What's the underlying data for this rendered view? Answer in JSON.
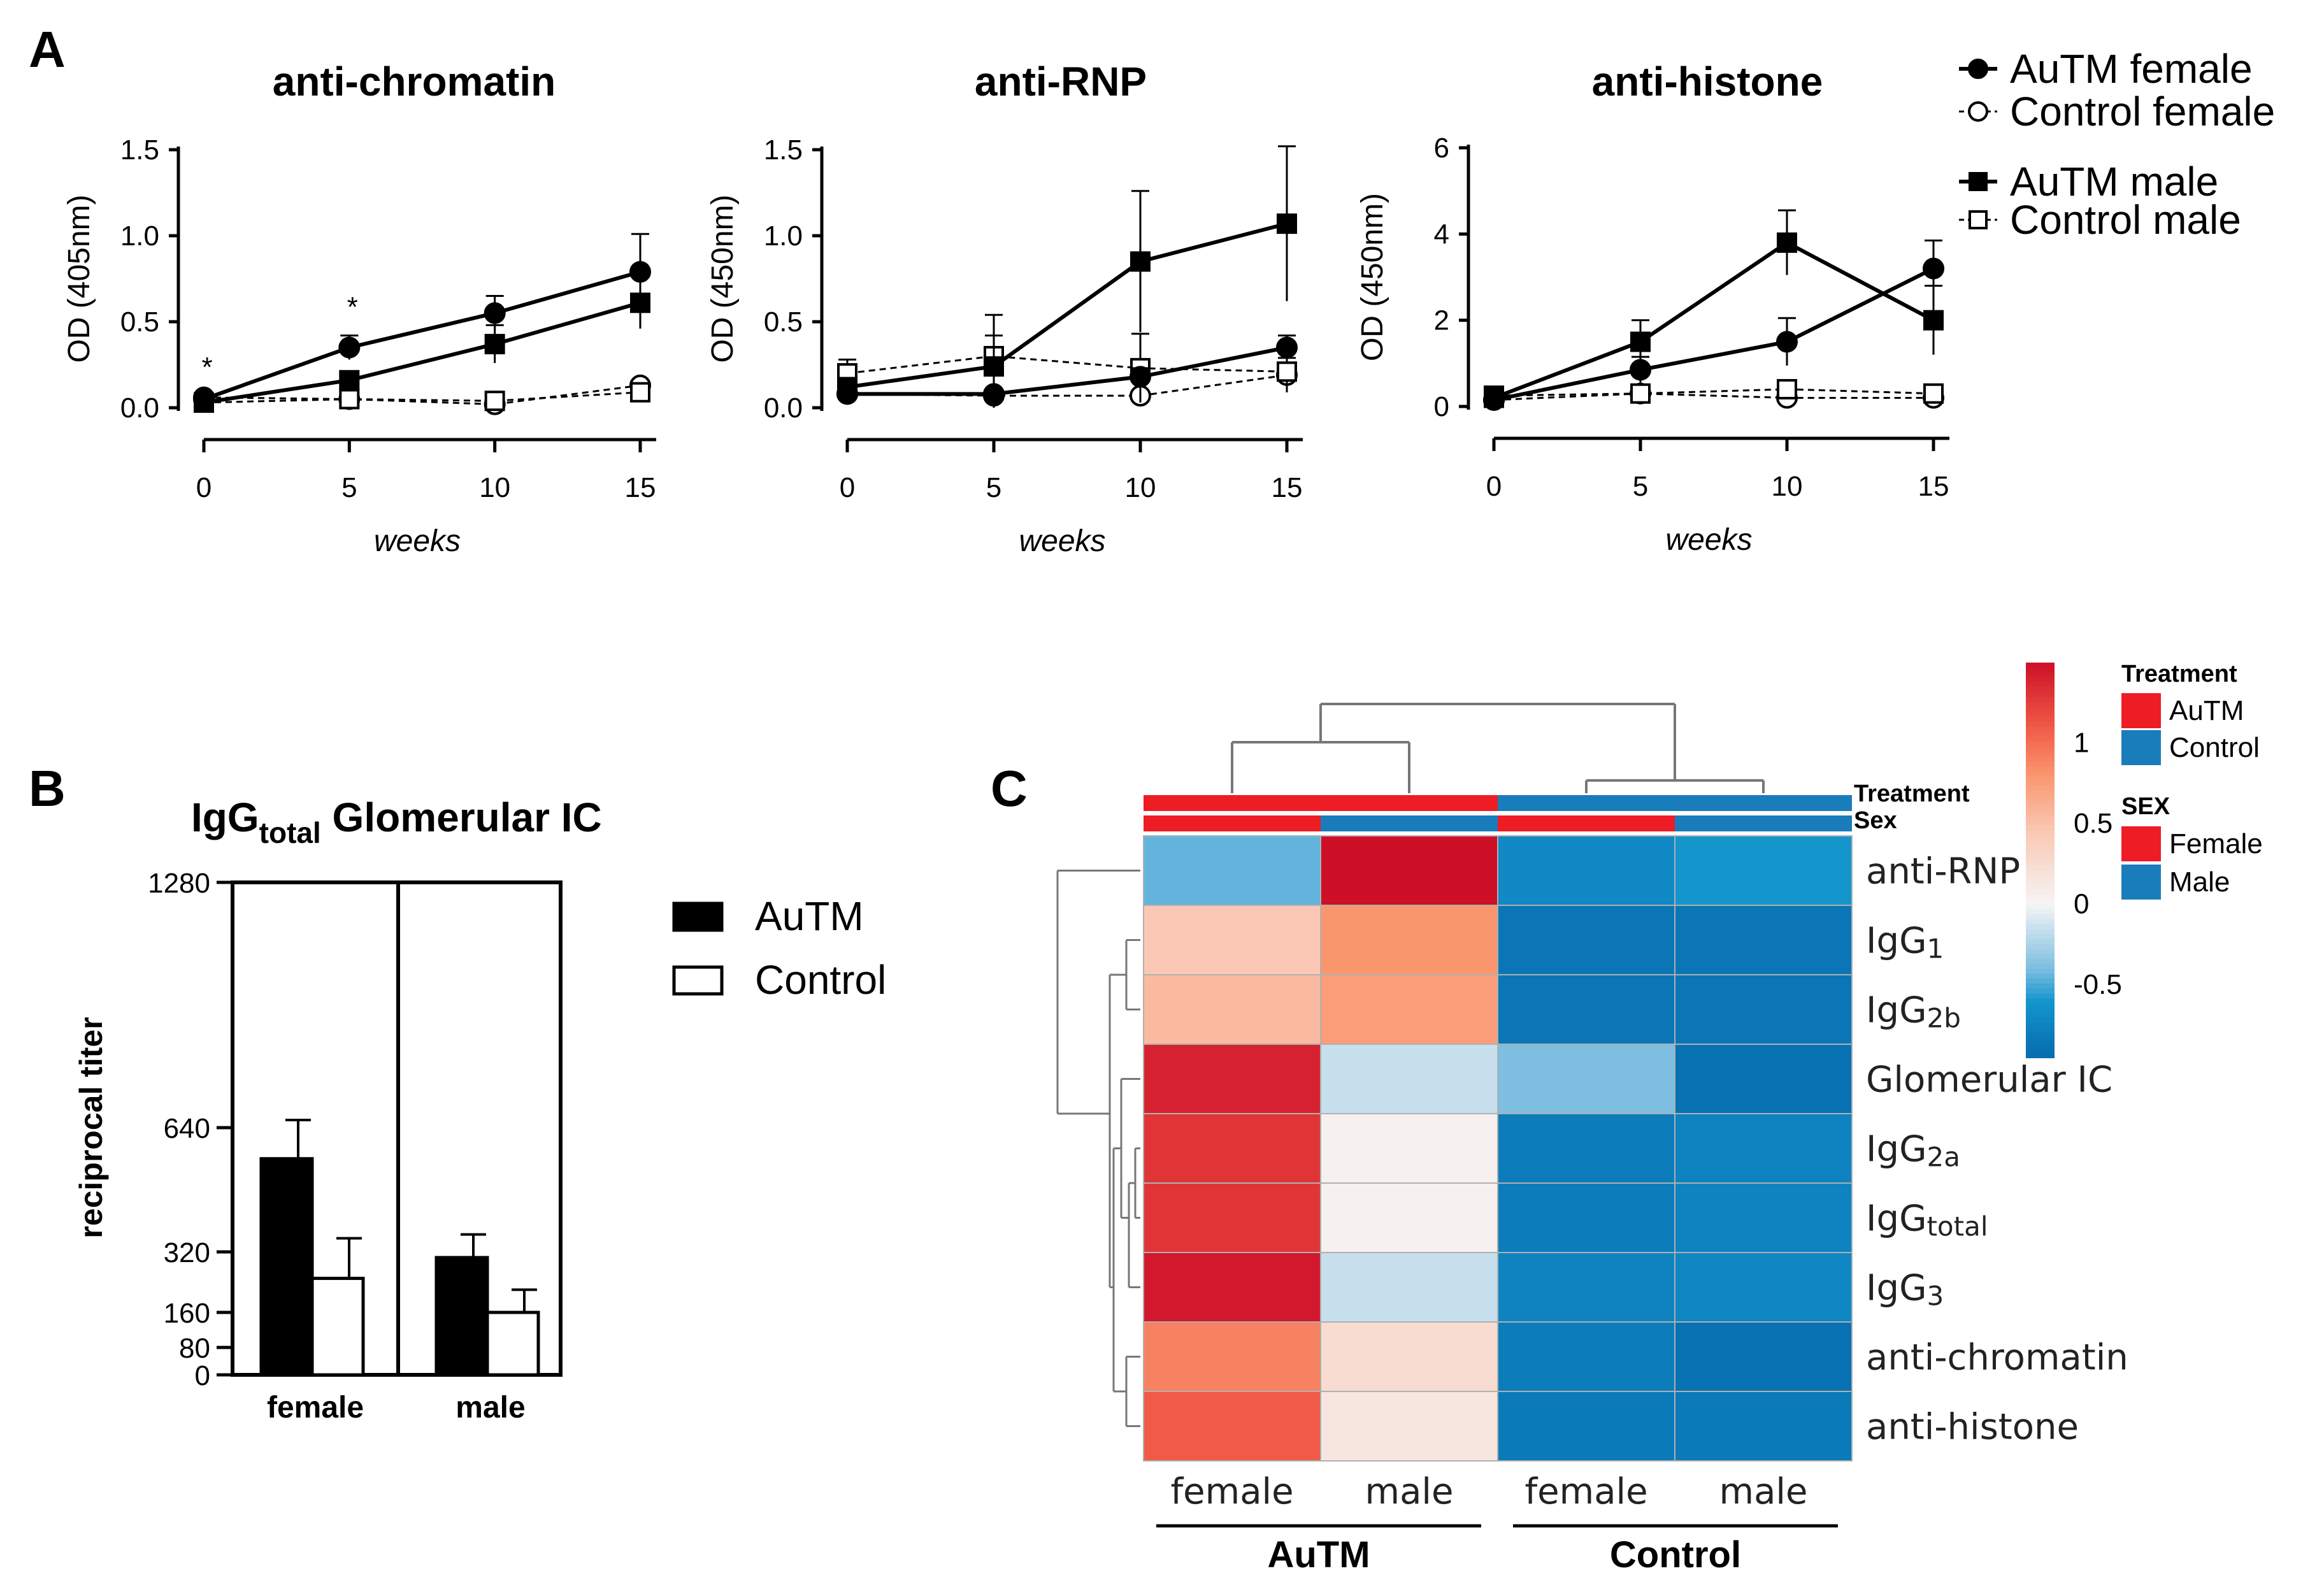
{
  "panels": {
    "A": "A",
    "B": "B",
    "C": "C"
  },
  "line_legend": [
    {
      "label": "AuTM female",
      "marker": "filled-circle-icon"
    },
    {
      "label": "Control female",
      "marker": "open-circle-icon"
    },
    {
      "label": "AuTM male",
      "marker": "filled-square-icon"
    },
    {
      "label": "Control male",
      "marker": "open-square-icon"
    }
  ],
  "bar_legend": [
    "AuTM",
    "Control"
  ],
  "heatmap_top_labels": {
    "treatment": "Treatment",
    "sex": "Sex"
  },
  "heatmap_side_legend": {
    "treatment_title": "Treatment",
    "treatment_items": [
      "AuTM",
      "Control"
    ],
    "sex_title": "SEX",
    "sex_items": [
      "Female",
      "Male"
    ]
  },
  "colors": {
    "red": "#ee1c25",
    "blue": "#1a7dbb"
  },
  "chart_data": [
    {
      "type": "line",
      "title": "anti-chromatin",
      "xlabel": "weeks",
      "ylabel": "OD (405nm)",
      "x": [
        0,
        5,
        10,
        15
      ],
      "xticks": [
        "0",
        "5",
        "10",
        "15"
      ],
      "ylim": [
        0,
        1.5
      ],
      "yticks": [
        "0.0",
        "0.5",
        "1.0",
        "1.5"
      ],
      "ytick_values": [
        0,
        0.5,
        1.0,
        1.5
      ],
      "series": [
        {
          "name": "AuTM female",
          "values": [
            0.05,
            0.35,
            0.55,
            0.79
          ],
          "err": [
            0.02,
            0.07,
            0.1,
            0.22
          ]
        },
        {
          "name": "AuTM male",
          "values": [
            0.03,
            0.16,
            0.37,
            0.61
          ],
          "err": [
            0.01,
            0.04,
            0.11,
            0.15
          ]
        },
        {
          "name": "Control female",
          "values": [
            0.06,
            0.05,
            0.02,
            0.13
          ],
          "err": [
            0.01,
            0.01,
            0.02,
            0.03
          ]
        },
        {
          "name": "Control male",
          "values": [
            0.03,
            0.05,
            0.04,
            0.09
          ],
          "err": [
            0.01,
            0.01,
            0.02,
            0.02
          ]
        }
      ],
      "annotations": [
        {
          "x": 0,
          "text": "*"
        },
        {
          "x": 5,
          "text": "*"
        }
      ]
    },
    {
      "type": "line",
      "title": "anti-RNP",
      "xlabel": "weeks",
      "ylabel": "OD (450nm)",
      "x": [
        0,
        5,
        10,
        15
      ],
      "xticks": [
        "0",
        "5",
        "10",
        "15"
      ],
      "ylim": [
        0,
        1.5
      ],
      "yticks": [
        "0.0",
        "0.5",
        "1.0",
        "1.5"
      ],
      "ytick_values": [
        0,
        0.5,
        1.0,
        1.5
      ],
      "series": [
        {
          "name": "AuTM female",
          "values": [
            0.08,
            0.08,
            0.18,
            0.35
          ],
          "err": [
            0.02,
            0.02,
            0.05,
            0.07
          ]
        },
        {
          "name": "AuTM male",
          "values": [
            0.12,
            0.24,
            0.85,
            1.07
          ],
          "err": [
            0.03,
            0.3,
            0.41,
            0.45
          ]
        },
        {
          "name": "Control female",
          "values": [
            0.08,
            0.07,
            0.07,
            0.19
          ],
          "err": [
            0.02,
            0.02,
            0.02,
            0.1
          ]
        },
        {
          "name": "Control male",
          "values": [
            0.2,
            0.3,
            0.23,
            0.21
          ],
          "err": [
            0.08,
            0.12,
            0.2,
            0.12
          ]
        }
      ],
      "annotations": []
    },
    {
      "type": "line",
      "title": "anti-histone",
      "xlabel": "weeks",
      "ylabel": "OD (450nm)",
      "x": [
        0,
        5,
        10,
        15
      ],
      "xticks": [
        "0",
        "5",
        "10",
        "15"
      ],
      "ylim": [
        0,
        6
      ],
      "yticks": [
        "0",
        "2",
        "4",
        "6"
      ],
      "ytick_values": [
        0,
        2,
        4,
        6
      ],
      "series": [
        {
          "name": "AuTM female",
          "values": [
            0.15,
            0.85,
            1.5,
            3.2
          ],
          "err": [
            0.05,
            0.3,
            0.55,
            0.65
          ]
        },
        {
          "name": "AuTM male",
          "values": [
            0.2,
            1.5,
            3.8,
            2.0
          ],
          "err": [
            0.08,
            0.5,
            0.75,
            0.8
          ]
        },
        {
          "name": "Control female",
          "values": [
            0.15,
            0.3,
            0.2,
            0.2
          ],
          "err": [
            0.03,
            0.05,
            0.05,
            0.05
          ]
        },
        {
          "name": "Control male",
          "values": [
            0.25,
            0.3,
            0.4,
            0.3
          ],
          "err": [
            0.05,
            0.05,
            0.08,
            0.06
          ]
        }
      ],
      "annotations": []
    },
    {
      "type": "bar",
      "title": "IgG",
      "title_sub": "total",
      "title_rest": " Glomerular IC",
      "ylabel": "reciprocal titer",
      "categories": [
        "female",
        "male"
      ],
      "ylim": [
        0,
        1280
      ],
      "yticks": [
        "0",
        "80",
        "160",
        "320",
        "640",
        "1280"
      ],
      "ytick_values": [
        0,
        80,
        160,
        320,
        640,
        1280
      ],
      "series": [
        {
          "name": "AuTM",
          "values": [
            560,
            305
          ],
          "err": [
            100,
            60
          ]
        },
        {
          "name": "Control",
          "values": [
            250,
            160
          ],
          "err": [
            105,
            60
          ]
        }
      ]
    },
    {
      "type": "heatmap",
      "rows": [
        {
          "label": "anti-RNP",
          "base": "anti-RNP",
          "sub": ""
        },
        {
          "label": "IgG1",
          "base": "IgG",
          "sub": "1"
        },
        {
          "label": "IgG2b",
          "base": "IgG",
          "sub": "2b"
        },
        {
          "label": "Glomerular IC",
          "base": "Glomerular IC",
          "sub": ""
        },
        {
          "label": "IgG2a",
          "base": "IgG",
          "sub": "2a"
        },
        {
          "label": "IgGtotal",
          "base": "IgG",
          "sub": "total"
        },
        {
          "label": "IgG3",
          "base": "IgG",
          "sub": "3"
        },
        {
          "label": "anti-chromatin",
          "base": "anti-chromatin",
          "sub": ""
        },
        {
          "label": "anti-histone",
          "base": "anti-histone",
          "sub": ""
        }
      ],
      "columns": [
        "female",
        "male",
        "female",
        "male"
      ],
      "treatment": [
        "AuTM",
        "AuTM",
        "Control",
        "Control"
      ],
      "sex": [
        "Female",
        "Male",
        "Female",
        "Male"
      ],
      "groups": [
        "AuTM",
        "Control"
      ],
      "values": [
        [
          -0.45,
          1.5,
          -0.7,
          -0.6
        ],
        [
          0.45,
          0.8,
          -0.85,
          -0.85
        ],
        [
          0.55,
          0.75,
          -0.85,
          -0.85
        ],
        [
          1.4,
          -0.15,
          -0.4,
          -0.9
        ],
        [
          1.3,
          0.05,
          -0.8,
          -0.75
        ],
        [
          1.3,
          0.05,
          -0.8,
          -0.75
        ],
        [
          1.45,
          -0.15,
          -0.75,
          -0.72
        ],
        [
          0.9,
          0.25,
          -0.8,
          -0.9
        ],
        [
          1.1,
          0.15,
          -0.82,
          -0.82
        ]
      ],
      "colorbar_ticks": [
        "1",
        "0.5",
        "0",
        "-0.5"
      ],
      "colorbar_tick_values": [
        1,
        0.5,
        0,
        -0.5
      ],
      "colorbar_range": [
        -0.95,
        1.5
      ]
    }
  ]
}
